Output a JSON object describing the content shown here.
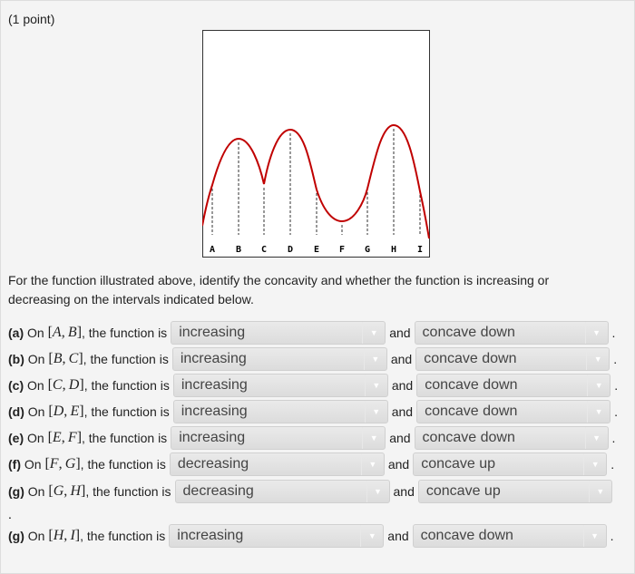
{
  "points": "(1 point)",
  "graph": {
    "labels": [
      "A",
      "B",
      "C",
      "D",
      "E",
      "F",
      "G",
      "H",
      "I"
    ],
    "curve_color": "#c00000"
  },
  "prompt": "For the function illustrated above, identify the concavity and whether the function is increasing or decreasing on the intervals indicated below.",
  "connector": "and",
  "phrase": "the function is",
  "rows": [
    {
      "tag": "(a)",
      "a": "A",
      "b": "B",
      "dir": "increasing",
      "conc": "concave down"
    },
    {
      "tag": "(b)",
      "a": "B",
      "b": "C",
      "dir": "increasing",
      "conc": "concave down"
    },
    {
      "tag": "(c)",
      "a": "C",
      "b": "D",
      "dir": "increasing",
      "conc": "concave down"
    },
    {
      "tag": "(d)",
      "a": "D",
      "b": "E",
      "dir": "increasing",
      "conc": "concave down"
    },
    {
      "tag": "(e)",
      "a": "E",
      "b": "F",
      "dir": "increasing",
      "conc": "concave down"
    },
    {
      "tag": "(f)",
      "a": "F",
      "b": "G",
      "dir": "decreasing",
      "conc": "concave up"
    },
    {
      "tag": "(g)",
      "a": "G",
      "b": "H",
      "dir": "decreasing",
      "conc": "concave up"
    },
    {
      "tag": "(g)",
      "a": "H",
      "b": "I",
      "dir": "increasing",
      "conc": "concave down"
    }
  ]
}
